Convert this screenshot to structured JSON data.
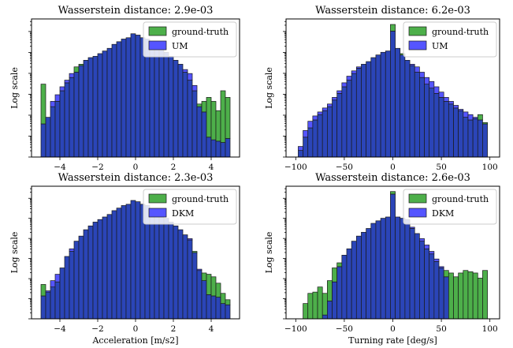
{
  "colors": {
    "ground_truth": "#4daf4a",
    "model": "#5555ff",
    "overlap": "#2b45b8",
    "edge": "#1a1a1a"
  },
  "chart_data": [
    {
      "type": "bar",
      "title": "Wasserstein distance: 2.9e-03",
      "ylabel": "Log scale",
      "xlabel": "",
      "log_y": true,
      "y_tick_labels": false,
      "xlim": [
        -5.5,
        5.5
      ],
      "xticks": [
        -4,
        -2,
        0,
        2,
        4
      ],
      "xtick_labels": [
        "−4",
        "−2",
        "0",
        "2",
        "4"
      ],
      "legend_position": "top-right",
      "bins": {
        "start": -5.0,
        "width": 0.25,
        "count": 40
      },
      "series": [
        {
          "name": "ground-truth",
          "values": [
            0.55,
            0.3,
            0.38,
            0.42,
            0.5,
            0.56,
            0.6,
            0.68,
            0.7,
            0.73,
            0.75,
            0.76,
            0.78,
            0.8,
            0.82,
            0.85,
            0.87,
            0.89,
            0.9,
            0.93,
            0.92,
            0.9,
            0.89,
            0.86,
            0.84,
            0.81,
            0.79,
            0.76,
            0.73,
            0.7,
            0.64,
            0.58,
            0.5,
            0.4,
            0.42,
            0.45,
            0.42,
            0.35,
            0.5,
            0.45
          ]
        },
        {
          "name": "UM",
          "values": [
            0.25,
            0.3,
            0.42,
            0.47,
            0.53,
            0.58,
            0.63,
            0.64,
            0.69,
            0.73,
            0.75,
            0.76,
            0.78,
            0.8,
            0.82,
            0.85,
            0.87,
            0.89,
            0.9,
            0.93,
            0.92,
            0.9,
            0.89,
            0.86,
            0.84,
            0.81,
            0.79,
            0.76,
            0.73,
            0.7,
            0.66,
            0.63,
            0.54,
            0.38,
            0.34,
            0.15,
            0.13,
            0.12,
            0.11,
            0.14
          ]
        }
      ]
    },
    {
      "type": "bar",
      "title": "Wasserstein distance: 6.2e-03",
      "ylabel": "Log scale",
      "xlabel": "",
      "log_y": true,
      "y_tick_labels": false,
      "xlim": [
        -110,
        110
      ],
      "xticks": [
        -100,
        -50,
        0,
        50,
        100
      ],
      "xtick_labels": [
        "−100",
        "−50",
        "0",
        "50",
        "100"
      ],
      "legend_position": "top-right",
      "bins": {
        "start": -97.5,
        "width": 5,
        "count": 39
      },
      "series": [
        {
          "name": "ground-truth",
          "values": [
            0.05,
            0.15,
            0.22,
            0.28,
            0.32,
            0.35,
            0.38,
            0.43,
            0.48,
            0.53,
            0.58,
            0.63,
            0.67,
            0.7,
            0.72,
            0.75,
            0.77,
            0.79,
            0.8,
            1.0,
            0.82,
            0.78,
            0.73,
            0.69,
            0.64,
            0.6,
            0.55,
            0.52,
            0.48,
            0.45,
            0.42,
            0.4,
            0.37,
            0.35,
            0.3,
            0.28,
            0.29,
            0.32,
            0.26
          ]
        },
        {
          "name": "UM",
          "values": [
            0.08,
            0.2,
            0.27,
            0.31,
            0.34,
            0.37,
            0.4,
            0.45,
            0.5,
            0.56,
            0.61,
            0.65,
            0.68,
            0.7,
            0.72,
            0.75,
            0.77,
            0.79,
            0.8,
            0.95,
            0.82,
            0.77,
            0.73,
            0.7,
            0.68,
            0.64,
            0.6,
            0.57,
            0.53,
            0.49,
            0.45,
            0.42,
            0.39,
            0.36,
            0.34,
            0.32,
            0.3,
            0.28,
            0.25
          ]
        }
      ]
    },
    {
      "type": "bar",
      "title": "Wasserstein distance: 2.3e-03",
      "ylabel": "Log scale",
      "xlabel": "Acceleration [m/s2]",
      "log_y": true,
      "y_tick_labels": false,
      "xlim": [
        -5.5,
        5.5
      ],
      "xticks": [
        -4,
        -2,
        0,
        2,
        4
      ],
      "xtick_labels": [
        "−4",
        "−2",
        "0",
        "2",
        "4"
      ],
      "legend_position": "top-right",
      "bins": {
        "start": -5.0,
        "width": 0.25,
        "count": 40
      },
      "series": [
        {
          "name": "ground-truth",
          "values": [
            0.27,
            0.21,
            0.25,
            0.29,
            0.4,
            0.49,
            0.53,
            0.61,
            0.65,
            0.7,
            0.73,
            0.76,
            0.78,
            0.8,
            0.82,
            0.85,
            0.87,
            0.89,
            0.9,
            0.93,
            0.92,
            0.9,
            0.89,
            0.86,
            0.84,
            0.81,
            0.79,
            0.76,
            0.73,
            0.7,
            0.66,
            0.62,
            0.53,
            0.38,
            0.36,
            0.35,
            0.33,
            0.28,
            0.2,
            0.15
          ]
        },
        {
          "name": "DKM",
          "values": [
            0.18,
            0.22,
            0.3,
            0.35,
            0.4,
            0.49,
            0.55,
            0.61,
            0.65,
            0.7,
            0.73,
            0.76,
            0.78,
            0.8,
            0.82,
            0.85,
            0.87,
            0.89,
            0.9,
            0.93,
            0.92,
            0.9,
            0.89,
            0.86,
            0.84,
            0.81,
            0.79,
            0.76,
            0.73,
            0.7,
            0.66,
            0.63,
            0.52,
            0.39,
            0.3,
            0.19,
            0.18,
            0.17,
            0.12,
            0.11
          ]
        }
      ]
    },
    {
      "type": "bar",
      "title": "Wasserstein distance: 2.6e-03",
      "ylabel": "Log scale",
      "xlabel": "Turning rate [deg/s]",
      "log_y": true,
      "y_tick_labels": false,
      "xlim": [
        -110,
        110
      ],
      "xticks": [
        -100,
        -50,
        0,
        50,
        100
      ],
      "xtick_labels": [
        "−100",
        "−50",
        "0",
        "50",
        "100"
      ],
      "legend_position": "top-right",
      "bins": {
        "start": -97.5,
        "width": 5,
        "count": 39
      },
      "series": [
        {
          "name": "ground-truth",
          "values": [
            0.0,
            0.12,
            0.2,
            0.21,
            0.25,
            0.2,
            0.3,
            0.4,
            0.44,
            0.5,
            0.55,
            0.61,
            0.65,
            0.68,
            0.71,
            0.75,
            0.77,
            0.79,
            0.8,
            1.0,
            0.8,
            0.79,
            0.78,
            0.71,
            0.67,
            0.61,
            0.55,
            0.51,
            0.45,
            0.4,
            0.38,
            0.36,
            0.33,
            0.36,
            0.38,
            0.37,
            0.36,
            0.32,
            0.38
          ]
        },
        {
          "name": "DKM",
          "values": [
            0.0,
            0.0,
            0.0,
            0.0,
            0.0,
            0.03,
            0.14,
            0.29,
            0.41,
            0.5,
            0.55,
            0.61,
            0.65,
            0.68,
            0.71,
            0.75,
            0.77,
            0.79,
            0.8,
            0.98,
            0.8,
            0.79,
            0.78,
            0.72,
            0.67,
            0.63,
            0.58,
            0.53,
            0.47,
            0.41,
            0.33,
            0.0,
            0.0,
            0.0,
            0.0,
            0.0,
            0.0,
            0.0,
            0.0
          ]
        }
      ]
    }
  ]
}
